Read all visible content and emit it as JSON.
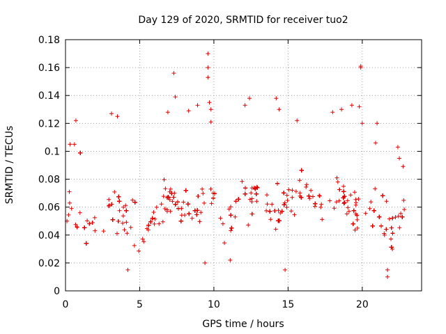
{
  "chart_data": {
    "type": "scatter",
    "title": "Day 129 of 2020, SRMTID for receiver tuo2",
    "xlabel": "GPS time / hours",
    "ylabel": "SRMTID / TECUs",
    "xlim": [
      0,
      24
    ],
    "ylim": [
      0,
      0.18
    ],
    "x_ticks": [
      0,
      5,
      10,
      15,
      20
    ],
    "x_tick_labels": [
      "0",
      "5",
      "10",
      "15",
      "20"
    ],
    "y_ticks": [
      0,
      0.02,
      0.04,
      0.06,
      0.08,
      0.1,
      0.12,
      0.14,
      0.16,
      0.18
    ],
    "y_tick_labels": [
      "0",
      "0.02",
      "0.04",
      "0.06",
      "0.08",
      "0.1",
      "0.12",
      "0.14",
      "0.16",
      "0.18"
    ],
    "grid": true,
    "marker": "plus",
    "color": "#e00000",
    "x_data_range": [
      0,
      22.9
    ],
    "baseline_profile": [
      [
        0.0,
        0.055
      ],
      [
        1.0,
        0.05
      ],
      [
        2.0,
        0.04
      ],
      [
        3.0,
        0.06
      ],
      [
        4.0,
        0.05
      ],
      [
        5.0,
        0.04
      ],
      [
        6.0,
        0.055
      ],
      [
        7.0,
        0.065
      ],
      [
        8.0,
        0.055
      ],
      [
        9.0,
        0.06
      ],
      [
        10.0,
        0.06
      ],
      [
        11.0,
        0.05
      ],
      [
        12.0,
        0.065
      ],
      [
        13.0,
        0.065
      ],
      [
        14.0,
        0.05
      ],
      [
        15.0,
        0.065
      ],
      [
        16.0,
        0.07
      ],
      [
        17.0,
        0.06
      ],
      [
        18.0,
        0.065
      ],
      [
        19.0,
        0.06
      ],
      [
        20.0,
        0.055
      ],
      [
        21.0,
        0.055
      ],
      [
        22.0,
        0.04
      ],
      [
        22.9,
        0.06
      ]
    ],
    "notable_points": [
      [
        0.1,
        0.05
      ],
      [
        0.3,
        0.105
      ],
      [
        0.6,
        0.105
      ],
      [
        0.7,
        0.122
      ],
      [
        3.1,
        0.127
      ],
      [
        3.5,
        0.125
      ],
      [
        4.2,
        0.015
      ],
      [
        6.9,
        0.128
      ],
      [
        7.3,
        0.156
      ],
      [
        7.4,
        0.139
      ],
      [
        8.3,
        0.129
      ],
      [
        8.9,
        0.133
      ],
      [
        9.6,
        0.17
      ],
      [
        9.6,
        0.16
      ],
      [
        9.6,
        0.153
      ],
      [
        9.7,
        0.135
      ],
      [
        9.8,
        0.13
      ],
      [
        9.8,
        0.121
      ],
      [
        9.4,
        0.02
      ],
      [
        12.4,
        0.138
      ],
      [
        12.1,
        0.133
      ],
      [
        11.1,
        0.022
      ],
      [
        14.2,
        0.138
      ],
      [
        14.4,
        0.13
      ],
      [
        14.8,
        0.015
      ],
      [
        15.6,
        0.122
      ],
      [
        18.0,
        0.128
      ],
      [
        18.6,
        0.13
      ],
      [
        19.3,
        0.133
      ],
      [
        19.8,
        0.132
      ],
      [
        19.9,
        0.161
      ],
      [
        19.9,
        0.16
      ],
      [
        20.0,
        0.12
      ],
      [
        21.0,
        0.12
      ],
      [
        20.9,
        0.106
      ],
      [
        21.5,
        0.04
      ],
      [
        21.7,
        0.01
      ],
      [
        21.7,
        0.015
      ],
      [
        22.4,
        0.103
      ],
      [
        22.5,
        0.095
      ]
    ]
  }
}
